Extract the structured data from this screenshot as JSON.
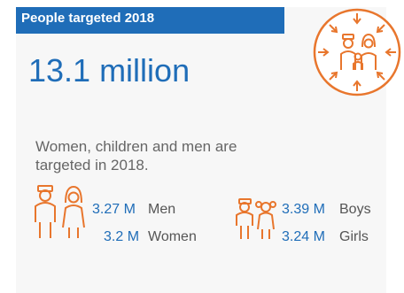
{
  "header": {
    "title": "People targeted 2018"
  },
  "main": {
    "total": "13.1 million",
    "description": "Women, children and men are targeted in 2018."
  },
  "breakdown": {
    "men": {
      "value": "3.27 M",
      "label": "Men"
    },
    "women": {
      "value": "3.2 M",
      "label": "Women"
    },
    "boys": {
      "value": "3.39 M",
      "label": "Boys"
    },
    "girls": {
      "value": "3.24 M",
      "label": "Girls"
    }
  },
  "colors": {
    "accent": "#1f6db8",
    "icon": "#e8762d",
    "panel": "#f7f7f7"
  },
  "icons": [
    "targeted-people-icon",
    "adults-icon",
    "children-icon"
  ]
}
